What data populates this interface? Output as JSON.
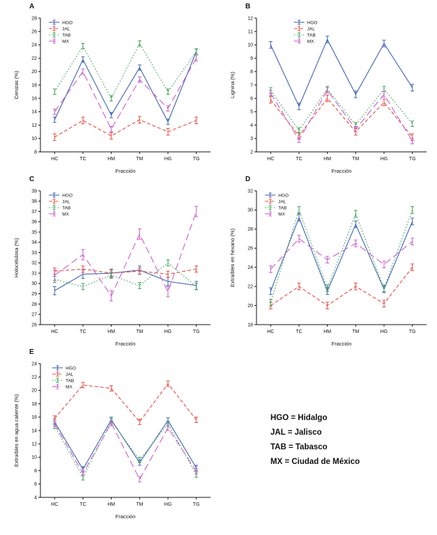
{
  "figure": {
    "background": "#ffffff"
  },
  "series_styles": {
    "HGO": {
      "color": "#3f63b5",
      "dash": ""
    },
    "JAL": {
      "color": "#e8493f",
      "dash": "5,3"
    },
    "TAB": {
      "color": "#36a24f",
      "dash": "1.6,2.6"
    },
    "MX": {
      "color": "#c95dc9",
      "dash": "10,5"
    }
  },
  "key": {
    "items": [
      "HGO = Hidalgo",
      "JAL = Jalisco",
      "TAB = Tabasco",
      "MX = Ciudad de México"
    ]
  },
  "chart_data": [
    {
      "panel": "A",
      "type": "line",
      "title": "",
      "xlabel": "Fracción",
      "ylabel": "Cenizas (%)",
      "categories": [
        "HC",
        "TC",
        "HM",
        "TM",
        "HG",
        "TG"
      ],
      "ylim": [
        8,
        28
      ],
      "ystep": 2,
      "grid": false,
      "legend_position": "top-left",
      "legend_x": 0.05,
      "series": [
        {
          "name": "HGO",
          "values": [
            12.8,
            21.8,
            13.5,
            20.6,
            12.5,
            23.0
          ],
          "err": 0.4
        },
        {
          "name": "JAL",
          "values": [
            10.2,
            12.7,
            10.4,
            12.8,
            11.0,
            12.7
          ],
          "err": 0.5
        },
        {
          "name": "TAB",
          "values": [
            17.0,
            23.8,
            16.0,
            24.2,
            17.0,
            23.0
          ],
          "err": 0.4
        },
        {
          "name": "MX",
          "values": [
            14.0,
            20.0,
            11.4,
            18.8,
            14.5,
            22.0
          ],
          "err": 0.4
        }
      ]
    },
    {
      "panel": "B",
      "type": "line",
      "title": "",
      "xlabel": "Fracción",
      "ylabel": "Lignina (%)",
      "categories": [
        "HC",
        "TC",
        "HM",
        "TM",
        "HG",
        "TG"
      ],
      "ylim": [
        2,
        12
      ],
      "ystep": 1,
      "grid": false,
      "legend_position": "top-left",
      "legend_x": 0.22,
      "series": [
        {
          "name": "HGO",
          "values": [
            10.0,
            5.4,
            10.4,
            6.3,
            10.1,
            6.8
          ],
          "err": 0.25
        },
        {
          "name": "JAL",
          "values": [
            5.9,
            3.2,
            6.0,
            3.5,
            5.7,
            3.1
          ],
          "err": 0.25
        },
        {
          "name": "TAB",
          "values": [
            6.6,
            3.6,
            6.7,
            4.0,
            6.7,
            4.1
          ],
          "err": 0.2
        },
        {
          "name": "MX",
          "values": [
            6.4,
            2.9,
            6.6,
            3.7,
            6.3,
            2.8
          ],
          "err": 0.2
        }
      ]
    },
    {
      "panel": "C",
      "type": "line",
      "title": "",
      "xlabel": "Fracción",
      "ylabel": "Holocelulosa (%)",
      "categories": [
        "HC",
        "TC",
        "HM",
        "TM",
        "HG",
        "TG"
      ],
      "ylim": [
        26,
        39
      ],
      "ystep": 1,
      "grid": false,
      "legend_position": "top-left",
      "legend_x": 0.05,
      "series": [
        {
          "name": "HGO",
          "values": [
            29.3,
            30.9,
            31.0,
            31.3,
            30.2,
            29.8
          ],
          "err": 0.4
        },
        {
          "name": "JAL",
          "values": [
            31.2,
            31.4,
            31.0,
            31.2,
            30.9,
            31.4
          ],
          "err": 0.3
        },
        {
          "name": "TAB",
          "values": [
            30.4,
            29.7,
            30.8,
            29.8,
            32.0,
            29.7
          ],
          "err": 0.3
        },
        {
          "name": "MX",
          "values": [
            30.8,
            32.8,
            28.8,
            34.8,
            29.2,
            37.0
          ],
          "err": 0.5
        }
      ]
    },
    {
      "panel": "D",
      "type": "line",
      "title": "",
      "xlabel": "Fracción",
      "ylabel": "Extraíbles en hexano (%)",
      "categories": [
        "HC",
        "TC",
        "HM",
        "TM",
        "HG",
        "TG"
      ],
      "ylim": [
        18,
        32
      ],
      "ystep": 2,
      "grid": false,
      "legend_position": "top-left",
      "legend_x": 0.05,
      "series": [
        {
          "name": "HGO",
          "values": [
            21.5,
            29.2,
            21.5,
            28.5,
            21.7,
            28.8
          ],
          "err": 0.35
        },
        {
          "name": "JAL",
          "values": [
            20.0,
            22.0,
            20.0,
            22.0,
            20.2,
            24.0
          ],
          "err": 0.35
        },
        {
          "name": "TAB",
          "values": [
            20.3,
            30.0,
            21.8,
            29.6,
            21.8,
            30.0
          ],
          "err": 0.35
        },
        {
          "name": "MX",
          "values": [
            23.8,
            27.0,
            24.8,
            26.5,
            24.3,
            26.7
          ],
          "err": 0.35
        }
      ]
    },
    {
      "panel": "E",
      "type": "line",
      "title": "",
      "xlabel": "Fracción",
      "ylabel": "Extraíbles en agua caliente (%)",
      "categories": [
        "HC",
        "TC",
        "HM",
        "TM",
        "HG",
        "TG"
      ],
      "ylim": [
        4,
        24
      ],
      "ystep": 2,
      "grid": false,
      "legend_position": "top-left",
      "legend_x": 0.07,
      "series": [
        {
          "name": "HGO",
          "values": [
            15.3,
            8.2,
            15.6,
            9.2,
            15.5,
            8.4
          ],
          "err": 0.4
        },
        {
          "name": "JAL",
          "values": [
            15.8,
            20.8,
            20.3,
            15.3,
            21.0,
            15.6
          ],
          "err": 0.4
        },
        {
          "name": "TAB",
          "values": [
            14.7,
            7.0,
            15.4,
            9.6,
            15.0,
            7.4
          ],
          "err": 0.4
        },
        {
          "name": "MX",
          "values": [
            15.0,
            7.6,
            15.1,
            6.7,
            14.4,
            7.9
          ],
          "err": 0.4
        }
      ]
    }
  ]
}
